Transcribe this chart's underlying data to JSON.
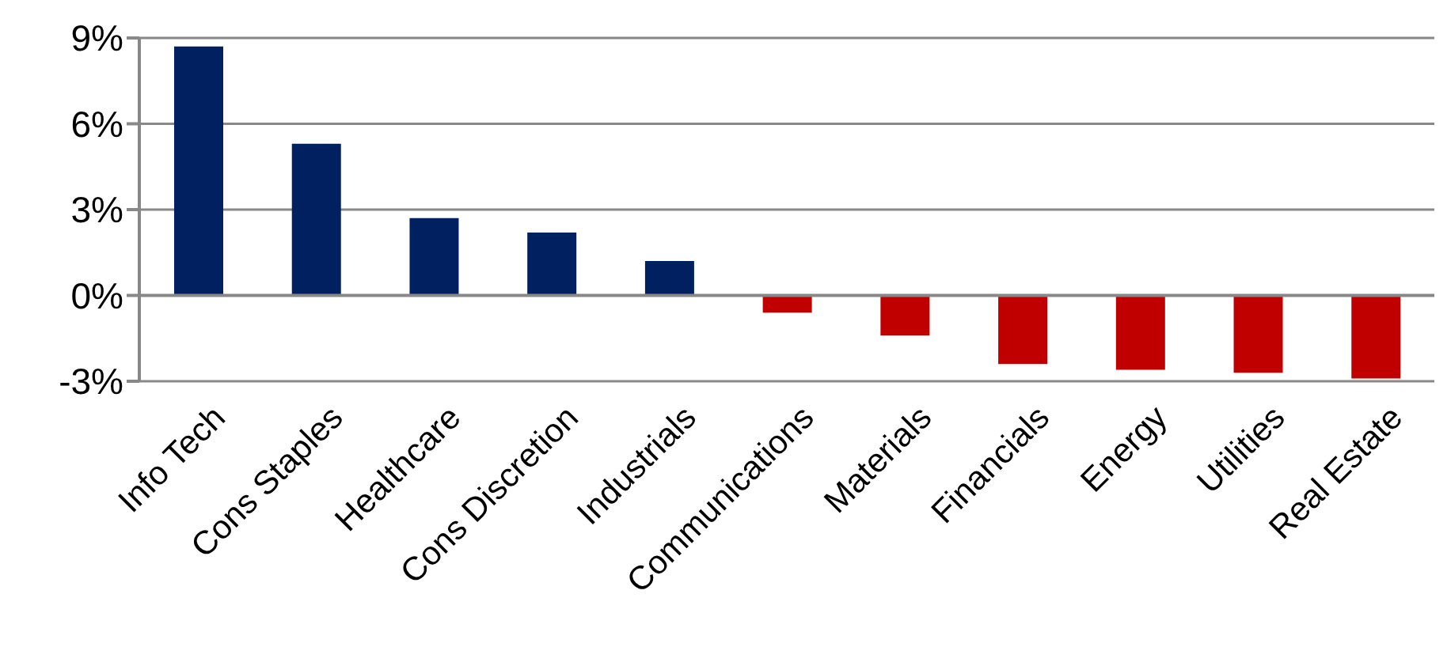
{
  "chart_data": {
    "type": "bar",
    "categories": [
      "Info Tech",
      "Cons Staples",
      "Healthcare",
      "Cons Discretion",
      "Industrials",
      "Communications",
      "Materials",
      "Financials",
      "Energy",
      "Utilities",
      "Real Estate"
    ],
    "values": [
      8.7,
      5.3,
      2.7,
      2.2,
      1.2,
      -0.6,
      -1.4,
      -2.4,
      -2.6,
      -2.7,
      -2.9
    ],
    "colors": [
      "#002060",
      "#002060",
      "#002060",
      "#002060",
      "#002060",
      "#c00000",
      "#c00000",
      "#c00000",
      "#c00000",
      "#c00000",
      "#c00000"
    ],
    "ylim": [
      -3,
      9
    ],
    "yticks": [
      {
        "value": -3,
        "label": "-3%"
      },
      {
        "value": 0,
        "label": "0%"
      },
      {
        "value": 3,
        "label": "3%"
      },
      {
        "value": 6,
        "label": "6%"
      },
      {
        "value": 9,
        "label": "9%"
      }
    ],
    "grid": "y"
  }
}
